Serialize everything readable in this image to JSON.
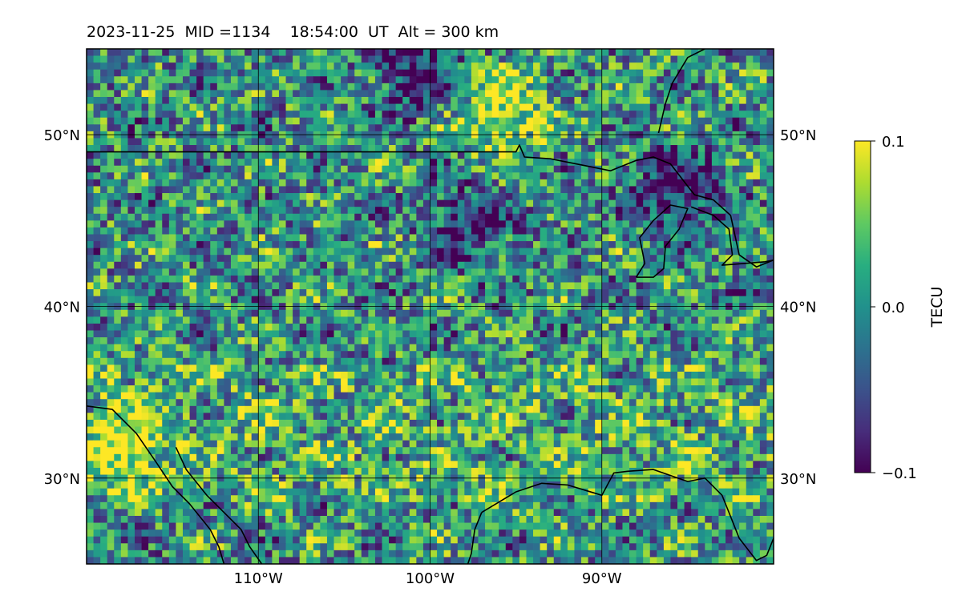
{
  "figure": {
    "title": "2023-11-25  MID =1134    18:54:00  UT  Alt = 300 km"
  },
  "chart_data": {
    "type": "heatmap",
    "map_projection": "plate carree",
    "region": {
      "lon_range": [
        -120,
        -80
      ],
      "lat_range": [
        25,
        55
      ]
    },
    "gridlines": true,
    "x_ticks": [
      {
        "value": -110,
        "label": "110°W"
      },
      {
        "value": -100,
        "label": "100°W"
      },
      {
        "value": -90,
        "label": "90°W"
      }
    ],
    "y_ticks": [
      {
        "value": 30,
        "label": "30°N"
      },
      {
        "value": 40,
        "label": "40°N"
      },
      {
        "value": 50,
        "label": "50°N"
      }
    ],
    "colorbar": {
      "label": "TECU",
      "colormap": "viridis",
      "range": [
        -0.1,
        0.1
      ],
      "ticks": [
        {
          "value": 0.1,
          "label": "0.1"
        },
        {
          "value": 0.0,
          "label": "0.0"
        },
        {
          "value": -0.1,
          "label": "−0.1"
        }
      ]
    },
    "value_field": {
      "description_grid": "approximate TEC perturbation pattern, lon step 0.4°, lat step 0.4°",
      "notable_features": [
        {
          "lon": -96,
          "lat": 51.5,
          "value": 0.1
        },
        {
          "lon": -118,
          "lat": 32,
          "value": 0.1
        },
        {
          "lon": -98,
          "lat": 45,
          "value": -0.08
        },
        {
          "lon": -86,
          "lat": 47,
          "value": -0.1
        },
        {
          "lon": -101,
          "lat": 54,
          "value": -0.1
        }
      ]
    },
    "coastlines": [
      [
        [
          -120,
          34.2
        ],
        [
          -118.5,
          34
        ],
        [
          -117.1,
          32.6
        ],
        [
          -116,
          31
        ],
        [
          -115,
          29.5
        ],
        [
          -114,
          28.5
        ],
        [
          -112.8,
          27
        ],
        [
          -112.3,
          26
        ],
        [
          -112,
          25
        ]
      ],
      [
        [
          -114.8,
          31.8
        ],
        [
          -114.2,
          30.5
        ],
        [
          -113,
          29
        ],
        [
          -112,
          28
        ],
        [
          -111,
          27
        ],
        [
          -110.5,
          26
        ],
        [
          -109.8,
          25
        ]
      ],
      [
        [
          -120,
          49
        ],
        [
          -95,
          49
        ],
        [
          -94.8,
          49.4
        ],
        [
          -94.5,
          48.7
        ],
        [
          -93,
          48.6
        ],
        [
          -91,
          48.2
        ],
        [
          -89.5,
          47.9
        ],
        [
          -88,
          48.5
        ],
        [
          -87,
          48.7
        ],
        [
          -86,
          48.3
        ],
        [
          -85,
          47
        ],
        [
          -84.6,
          46.5
        ],
        [
          -83.5,
          46.2
        ],
        [
          -82.5,
          45.3
        ],
        [
          -82,
          43
        ],
        [
          -81,
          42.3
        ],
        [
          -80,
          42.7
        ]
      ],
      [
        [
          -97,
          28
        ],
        [
          -97.4,
          27
        ],
        [
          -97.6,
          25.6
        ],
        [
          -97.8,
          25
        ]
      ],
      [
        [
          -97,
          28
        ],
        [
          -95,
          29.2
        ],
        [
          -93.5,
          29.7
        ],
        [
          -92,
          29.6
        ],
        [
          -91,
          29.3
        ],
        [
          -90,
          29
        ],
        [
          -89.3,
          30.3
        ],
        [
          -88.5,
          30.4
        ],
        [
          -87,
          30.5
        ],
        [
          -85,
          29.8
        ],
        [
          -84,
          30
        ],
        [
          -83,
          29
        ],
        [
          -82.6,
          28
        ],
        [
          -82,
          26.5
        ],
        [
          -81,
          25.2
        ],
        [
          -80.4,
          25.5
        ],
        [
          -80,
          26.5
        ]
      ],
      [
        [
          -88,
          41.7
        ],
        [
          -87.5,
          42.5
        ],
        [
          -87.8,
          44
        ],
        [
          -87,
          45
        ],
        [
          -86,
          45.9
        ],
        [
          -85,
          45.7
        ],
        [
          -85.5,
          44.5
        ],
        [
          -86.3,
          43.5
        ],
        [
          -86.4,
          42.2
        ],
        [
          -87,
          41.7
        ],
        [
          -88,
          41.7
        ]
      ],
      [
        [
          -84.8,
          45.8
        ],
        [
          -83.5,
          45.3
        ],
        [
          -82.6,
          44.5
        ],
        [
          -82.4,
          43
        ],
        [
          -83,
          42.4
        ],
        [
          -80.5,
          42.6
        ],
        [
          -80,
          42.7
        ]
      ],
      [
        [
          -86.7,
          50.1
        ],
        [
          -86.3,
          51.8
        ],
        [
          -85.9,
          53
        ],
        [
          -85,
          54.5
        ],
        [
          -84,
          55
        ]
      ]
    ]
  }
}
